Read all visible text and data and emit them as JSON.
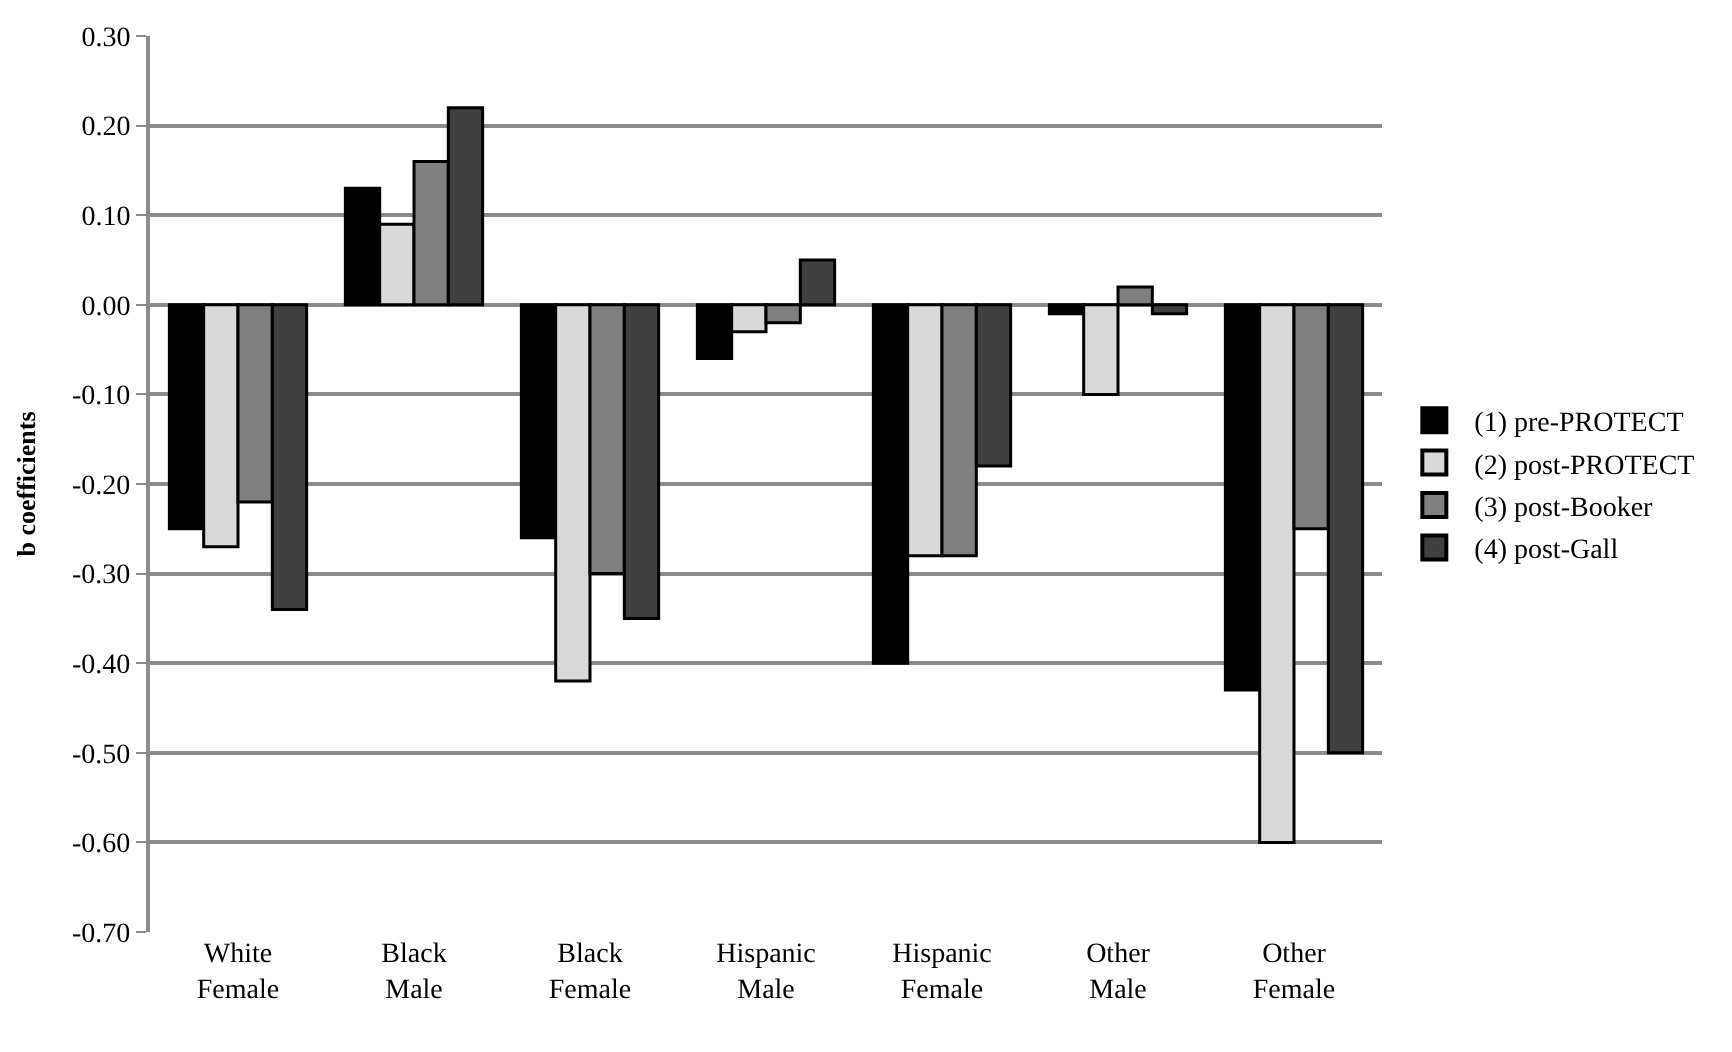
{
  "chart_data": {
    "type": "bar",
    "ylabel": "b coefficients",
    "categories": [
      "White Female",
      "Black Male",
      "Black Female",
      "Hispanic Male",
      "Hispanic Female",
      "Other Male",
      "Other Female"
    ],
    "series": [
      {
        "name": "(1) pre-PROTECT",
        "color": "#000000",
        "values": [
          -0.25,
          0.13,
          -0.26,
          -0.06,
          -0.4,
          -0.01,
          -0.43
        ]
      },
      {
        "name": "(2) post-PROTECT",
        "color": "#d9d9d9",
        "values": [
          -0.27,
          0.09,
          -0.42,
          -0.03,
          -0.28,
          -0.1,
          -0.6
        ]
      },
      {
        "name": "(3) post-Booker",
        "color": "#808080",
        "values": [
          -0.22,
          0.16,
          -0.3,
          -0.02,
          -0.28,
          0.02,
          -0.25
        ]
      },
      {
        "name": "(4) post-Gall",
        "color": "#404040",
        "values": [
          -0.34,
          0.22,
          -0.35,
          0.05,
          -0.18,
          -0.01,
          -0.5
        ]
      }
    ],
    "ylim": [
      -0.7,
      0.3
    ],
    "yticks": [
      {
        "value": -0.7,
        "label": "-0.70"
      },
      {
        "value": -0.6,
        "label": "-0.60"
      },
      {
        "value": -0.5,
        "label": "-0.50"
      },
      {
        "value": -0.4,
        "label": "-0.40"
      },
      {
        "value": -0.3,
        "label": "-0.30"
      },
      {
        "value": -0.2,
        "label": "-0.20"
      },
      {
        "value": -0.1,
        "label": "-0.10"
      },
      {
        "value": 0,
        "label": "0.00"
      },
      {
        "value": 0.1,
        "label": "0.10"
      },
      {
        "value": 0.2,
        "label": "0.20"
      },
      {
        "value": 0.3,
        "label": "0.30"
      }
    ],
    "grid": "y",
    "legend": "right"
  }
}
